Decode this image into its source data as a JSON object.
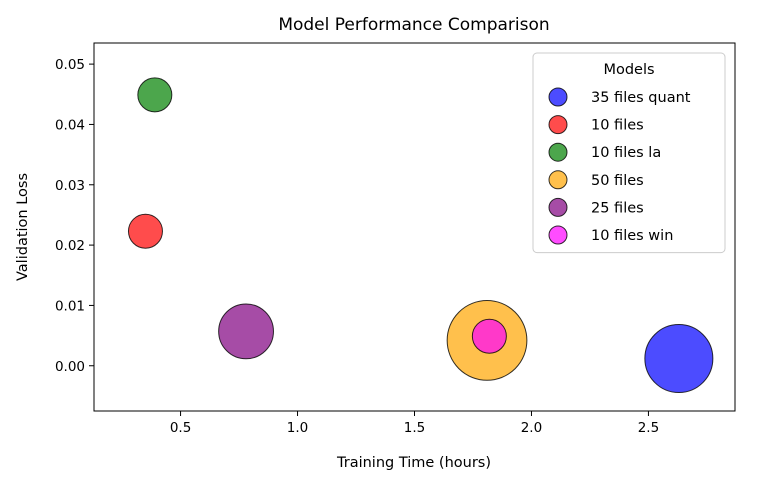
{
  "chart_data": {
    "type": "scatter",
    "title": "Model Performance Comparison",
    "xlabel": "Training Time (hours)",
    "ylabel": "Validation Loss",
    "xlim": [
      0.13,
      2.87
    ],
    "ylim": [
      -0.0075,
      0.0535
    ],
    "xticks": [
      0.5,
      1.0,
      1.5,
      2.0,
      2.5
    ],
    "xtick_labels": [
      "0.5",
      "1.0",
      "1.5",
      "2.0",
      "2.5"
    ],
    "yticks": [
      0.0,
      0.01,
      0.02,
      0.03,
      0.04,
      0.05
    ],
    "ytick_labels": [
      "0.00",
      "0.01",
      "0.02",
      "0.03",
      "0.04",
      "0.05"
    ],
    "grid": false,
    "legend": {
      "title": "Models",
      "placement": "top-right"
    },
    "marker_alpha": 0.7,
    "series": [
      {
        "name": "35 files quant",
        "x": 2.63,
        "y": 0.0012,
        "size": 4,
        "color": "#0000ff"
      },
      {
        "name": "10 files",
        "x": 0.35,
        "y": 0.0223,
        "size": 1,
        "color": "#ff0000"
      },
      {
        "name": "10 files la",
        "x": 0.39,
        "y": 0.0449,
        "size": 1,
        "color": "#008000"
      },
      {
        "name": "50 files",
        "x": 1.81,
        "y": 0.0042,
        "size": 5.5,
        "color": "#ffa500"
      },
      {
        "name": "25 files",
        "x": 0.78,
        "y": 0.0057,
        "size": 2.6,
        "color": "#800080"
      },
      {
        "name": "10 files win",
        "x": 1.82,
        "y": 0.0049,
        "size": 1,
        "color": "#ff00ff"
      }
    ]
  }
}
